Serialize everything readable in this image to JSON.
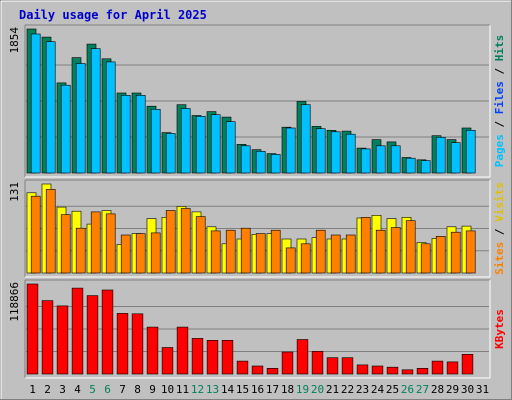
{
  "chart_data": {
    "type": "bar",
    "title": "Daily usage for April 2025",
    "categories": [
      "1",
      "2",
      "3",
      "4",
      "5",
      "6",
      "7",
      "8",
      "9",
      "10",
      "11",
      "12",
      "13",
      "14",
      "15",
      "16",
      "17",
      "18",
      "19",
      "20",
      "21",
      "22",
      "23",
      "24",
      "25",
      "26",
      "27",
      "28",
      "29",
      "30",
      "31"
    ],
    "weekend_days": [
      "5",
      "6",
      "12",
      "13",
      "19",
      "20",
      "26",
      "27"
    ],
    "colors": {
      "hits": "#00805c",
      "files": "#00c0ff",
      "pages": "#00e0ff",
      "visits": "#ffff00",
      "sites": "#ff8000",
      "kbytes": "#ff0000",
      "weekday_label": "#000000",
      "weekend_label": "#00805c",
      "title": "#0000cc",
      "label_pages": "#00c0ff",
      "label_files": "#0040ff",
      "label_hits": "#00805c",
      "label_sites": "#ff8000",
      "label_visits": "#e0c000",
      "label_kbytes": "#ff0000"
    },
    "panels": [
      {
        "name": "hits-files",
        "ymax_label": "1854",
        "ylim": [
          0,
          1854
        ],
        "side_labels": [
          {
            "text": "Pages",
            "color_key": "label_pages"
          },
          {
            "text": " / ",
            "color_key": "weekday_label"
          },
          {
            "text": "Files",
            "color_key": "label_files"
          },
          {
            "text": " / ",
            "color_key": "weekday_label"
          },
          {
            "text": "Hits",
            "color_key": "label_hits"
          }
        ],
        "series": [
          {
            "key": "hits",
            "values": [
              1854,
              1750,
              1160,
              1486,
              1660,
              1470,
              1030,
              1030,
              860,
              520,
              880,
              740,
              790,
              720,
              370,
              300,
              250,
              590,
              920,
              600,
              550,
              540,
              320,
              430,
              400,
              200,
              170,
              480,
              430,
              580,
              0
            ]
          },
          {
            "key": "files",
            "values": [
              1790,
              1690,
              1130,
              1410,
              1600,
              1430,
              1000,
              1000,
              820,
              510,
              830,
              730,
              750,
              660,
              350,
              280,
              240,
              580,
              880,
              570,
              530,
              500,
              310,
              350,
              350,
              190,
              160,
              460,
              390,
              550,
              0
            ]
          }
        ]
      },
      {
        "name": "sites-visits",
        "ymax_label": "131",
        "ylim": [
          0,
          131
        ],
        "side_labels": [
          {
            "text": "Sites",
            "color_key": "label_sites"
          },
          {
            "text": " / ",
            "color_key": "weekday_label"
          },
          {
            "text": "Visits",
            "color_key": "label_visits"
          }
        ],
        "series": [
          {
            "key": "visits",
            "values": [
              118,
              131,
              97,
              91,
              72,
              92,
              42,
              58,
              80,
              82,
              98,
              90,
              68,
              43,
              50,
              57,
              58,
              50,
              50,
              52,
              50,
              50,
              81,
              85,
              80,
              82,
              45,
              51,
              68,
              69,
              0
            ]
          },
          {
            "key": "sites",
            "values": [
              113,
              123,
              86,
              66,
              90,
              87,
              56,
              58,
              59,
              92,
              95,
              83,
              62,
              63,
              66,
              58,
              63,
              37,
              43,
              63,
              56,
              56,
              82,
              63,
              67,
              77,
              43,
              54,
              60,
              62,
              0
            ]
          }
        ]
      },
      {
        "name": "kbytes",
        "ymax_label": "118866",
        "ylim": [
          0,
          118866
        ],
        "side_labels": [
          {
            "text": "KBytes",
            "color_key": "label_kbytes"
          }
        ],
        "series": [
          {
            "key": "kbytes",
            "values": [
              118866,
              97000,
              90000,
              113500,
              103500,
              111000,
              80000,
              79500,
              62000,
              35000,
              62000,
              47000,
              44500,
              44500,
              17000,
              10500,
              7500,
              29000,
              45500,
              30000,
              21500,
              21500,
              12000,
              10500,
              9000,
              5500,
              7500,
              17000,
              16000,
              26000,
              0
            ]
          }
        ]
      }
    ]
  }
}
